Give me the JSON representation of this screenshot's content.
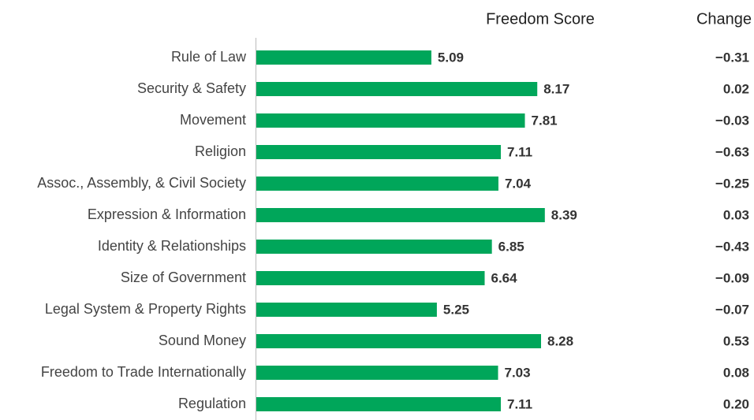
{
  "chart_data": {
    "type": "bar",
    "orientation": "horizontal",
    "categories": [
      "Rule of Law",
      "Security & Safety",
      "Movement",
      "Religion",
      "Assoc., Assembly, & Civil Society",
      "Expression & Information",
      "Identity & Relationships",
      "Size of Government",
      "Legal System & Property Rights",
      "Sound Money",
      "Freedom to Trade Internationally",
      "Regulation"
    ],
    "series": [
      {
        "name": "Freedom Score",
        "color": "#00a65a",
        "values": [
          5.09,
          8.17,
          7.81,
          7.11,
          7.04,
          8.39,
          6.85,
          6.64,
          5.25,
          8.28,
          7.03,
          7.11
        ]
      }
    ],
    "change": {
      "name": "Change",
      "values": [
        -0.31,
        0.02,
        -0.03,
        -0.63,
        -0.25,
        0.03,
        -0.43,
        -0.09,
        -0.07,
        0.53,
        0.08,
        0.2
      ],
      "value_labels": [
        "−0.31",
        "0.02",
        "−0.03",
        "−0.63",
        "−0.25",
        "0.03",
        "−0.43",
        "−0.09",
        "−0.07",
        "0.53",
        "0.08",
        "0.20"
      ]
    },
    "xlim": [
      0,
      10
    ]
  }
}
